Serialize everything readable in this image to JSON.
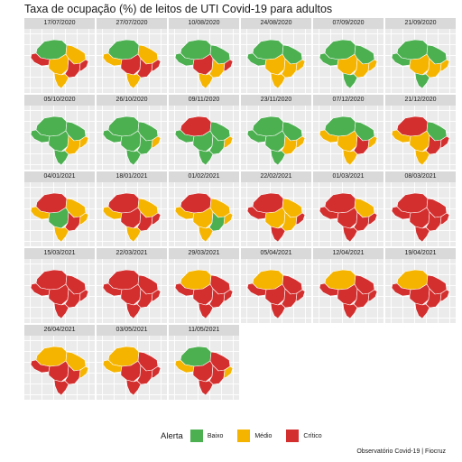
{
  "title": "Taxa de ocupação (%) de leitos de UTI Covid-19 para adultos",
  "legend": {
    "title": "Alerta",
    "items": [
      {
        "label": "Baixo",
        "color": "#4caf50"
      },
      {
        "label": "Médio",
        "color": "#f5b400"
      },
      {
        "label": "Crítico",
        "color": "#d32f2f"
      }
    ]
  },
  "caption": "Observatório Covid-19 | Fiocruz",
  "region_levels_order": [
    "north",
    "west",
    "centerwest",
    "northeast",
    "southeast",
    "south",
    "coast"
  ],
  "panels": [
    {
      "date": "17/07/2020",
      "levels": [
        "Baixo",
        "Crítico",
        "Médio",
        "Médio",
        "Crítico",
        "Médio",
        "Crítico"
      ]
    },
    {
      "date": "27/07/2020",
      "levels": [
        "Baixo",
        "Médio",
        "Crítico",
        "Médio",
        "Crítico",
        "Médio",
        "Crítico"
      ]
    },
    {
      "date": "10/08/2020",
      "levels": [
        "Baixo",
        "Baixo",
        "Crítico",
        "Baixo",
        "Médio",
        "Médio",
        "Crítico"
      ]
    },
    {
      "date": "24/08/2020",
      "levels": [
        "Baixo",
        "Baixo",
        "Médio",
        "Baixo",
        "Médio",
        "Médio",
        "Médio"
      ]
    },
    {
      "date": "07/09/2020",
      "levels": [
        "Baixo",
        "Baixo",
        "Médio",
        "Baixo",
        "Médio",
        "Baixo",
        "Médio"
      ]
    },
    {
      "date": "21/09/2020",
      "levels": [
        "Baixo",
        "Baixo",
        "Médio",
        "Baixo",
        "Médio",
        "Baixo",
        "Médio"
      ]
    },
    {
      "date": "05/10/2020",
      "levels": [
        "Baixo",
        "Baixo",
        "Baixo",
        "Baixo",
        "Médio",
        "Baixo",
        "Médio"
      ]
    },
    {
      "date": "26/10/2020",
      "levels": [
        "Baixo",
        "Baixo",
        "Baixo",
        "Baixo",
        "Baixo",
        "Baixo",
        "Médio"
      ]
    },
    {
      "date": "09/11/2020",
      "levels": [
        "Crítico",
        "Baixo",
        "Baixo",
        "Baixo",
        "Baixo",
        "Baixo",
        "Médio"
      ]
    },
    {
      "date": "23/11/2020",
      "levels": [
        "Baixo",
        "Baixo",
        "Baixo",
        "Baixo",
        "Médio",
        "Baixo",
        "Médio"
      ]
    },
    {
      "date": "07/12/2020",
      "levels": [
        "Baixo",
        "Médio",
        "Médio",
        "Baixo",
        "Crítico",
        "Médio",
        "Médio"
      ]
    },
    {
      "date": "21/12/2020",
      "levels": [
        "Crítico",
        "Médio",
        "Médio",
        "Baixo",
        "Crítico",
        "Médio",
        "Crítico"
      ]
    },
    {
      "date": "04/01/2021",
      "levels": [
        "Crítico",
        "Médio",
        "Baixo",
        "Médio",
        "Crítico",
        "Médio",
        "Médio"
      ]
    },
    {
      "date": "18/01/2021",
      "levels": [
        "Crítico",
        "Médio",
        "Crítico",
        "Médio",
        "Crítico",
        "Médio",
        "Crítico"
      ]
    },
    {
      "date": "01/02/2021",
      "levels": [
        "Crítico",
        "Médio",
        "Médio",
        "Médio",
        "Baixo",
        "Médio",
        "Médio"
      ]
    },
    {
      "date": "22/02/2021",
      "levels": [
        "Crítico",
        "Crítico",
        "Médio",
        "Médio",
        "Médio",
        "Crítico",
        "Crítico"
      ]
    },
    {
      "date": "01/03/2021",
      "levels": [
        "Crítico",
        "Crítico",
        "Crítico",
        "Médio",
        "Crítico",
        "Crítico",
        "Crítico"
      ]
    },
    {
      "date": "08/03/2021",
      "levels": [
        "Crítico",
        "Crítico",
        "Crítico",
        "Crítico",
        "Crítico",
        "Crítico",
        "Crítico"
      ]
    },
    {
      "date": "15/03/2021",
      "levels": [
        "Crítico",
        "Crítico",
        "Crítico",
        "Crítico",
        "Crítico",
        "Crítico",
        "Crítico"
      ]
    },
    {
      "date": "22/03/2021",
      "levels": [
        "Crítico",
        "Crítico",
        "Crítico",
        "Crítico",
        "Crítico",
        "Crítico",
        "Crítico"
      ]
    },
    {
      "date": "29/03/2021",
      "levels": [
        "Médio",
        "Crítico",
        "Crítico",
        "Crítico",
        "Crítico",
        "Crítico",
        "Crítico"
      ]
    },
    {
      "date": "05/04/2021",
      "levels": [
        "Médio",
        "Crítico",
        "Crítico",
        "Crítico",
        "Crítico",
        "Crítico",
        "Crítico"
      ]
    },
    {
      "date": "12/04/2021",
      "levels": [
        "Médio",
        "Crítico",
        "Crítico",
        "Crítico",
        "Crítico",
        "Crítico",
        "Crítico"
      ]
    },
    {
      "date": "19/04/2021",
      "levels": [
        "Médio",
        "Crítico",
        "Crítico",
        "Crítico",
        "Crítico",
        "Crítico",
        "Crítico"
      ]
    },
    {
      "date": "26/04/2021",
      "levels": [
        "Médio",
        "Crítico",
        "Crítico",
        "Médio",
        "Crítico",
        "Crítico",
        "Médio"
      ]
    },
    {
      "date": "03/05/2021",
      "levels": [
        "Médio",
        "Médio",
        "Crítico",
        "Crítico",
        "Crítico",
        "Crítico",
        "Crítico"
      ]
    },
    {
      "date": "11/05/2021",
      "levels": [
        "Baixo",
        "Médio",
        "Crítico",
        "Crítico",
        "Crítico",
        "Crítico",
        "Médio"
      ]
    }
  ]
}
